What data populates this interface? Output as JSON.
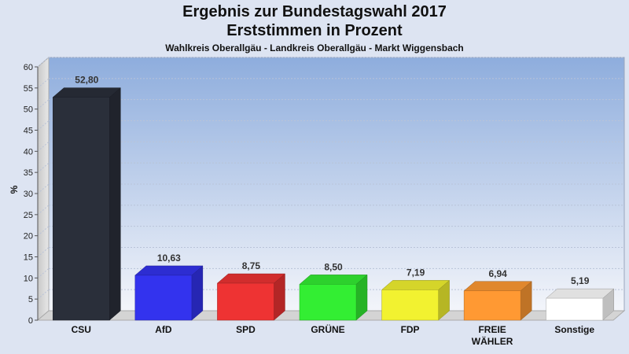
{
  "chart_data": {
    "type": "bar",
    "title": "Ergebnis zur Bundestagswahl 2017",
    "title2": "Erststimmen in Prozent",
    "subtitle": "Wahlkreis Oberallgäu - Landkreis Oberallgäu - Markt Wiggensbach",
    "ylabel": "%",
    "ylim": [
      0,
      60
    ],
    "yticks": [
      0,
      5,
      10,
      15,
      20,
      25,
      30,
      35,
      40,
      45,
      50,
      55,
      60
    ],
    "categories": [
      "CSU",
      "AfD",
      "SPD",
      "GRÜNE",
      "FDP",
      "FREIE WÄHLER",
      "Sonstige"
    ],
    "category_lines": [
      [
        "CSU"
      ],
      [
        "AfD"
      ],
      [
        "SPD"
      ],
      [
        "GRÜNE"
      ],
      [
        "FDP"
      ],
      [
        "FREIE",
        "WÄHLER"
      ],
      [
        "Sonstige"
      ]
    ],
    "values": [
      52.8,
      10.63,
      8.75,
      8.5,
      7.19,
      6.94,
      5.19
    ],
    "value_labels": [
      "52,80",
      "10,63",
      "8,75",
      "8,50",
      "7,19",
      "6,94",
      "5,19"
    ],
    "colors": [
      "#2a2f3a",
      "#3333ee",
      "#ee3333",
      "#33ee33",
      "#f2f230",
      "#ff9933",
      "#ffffff"
    ],
    "grid": true
  }
}
